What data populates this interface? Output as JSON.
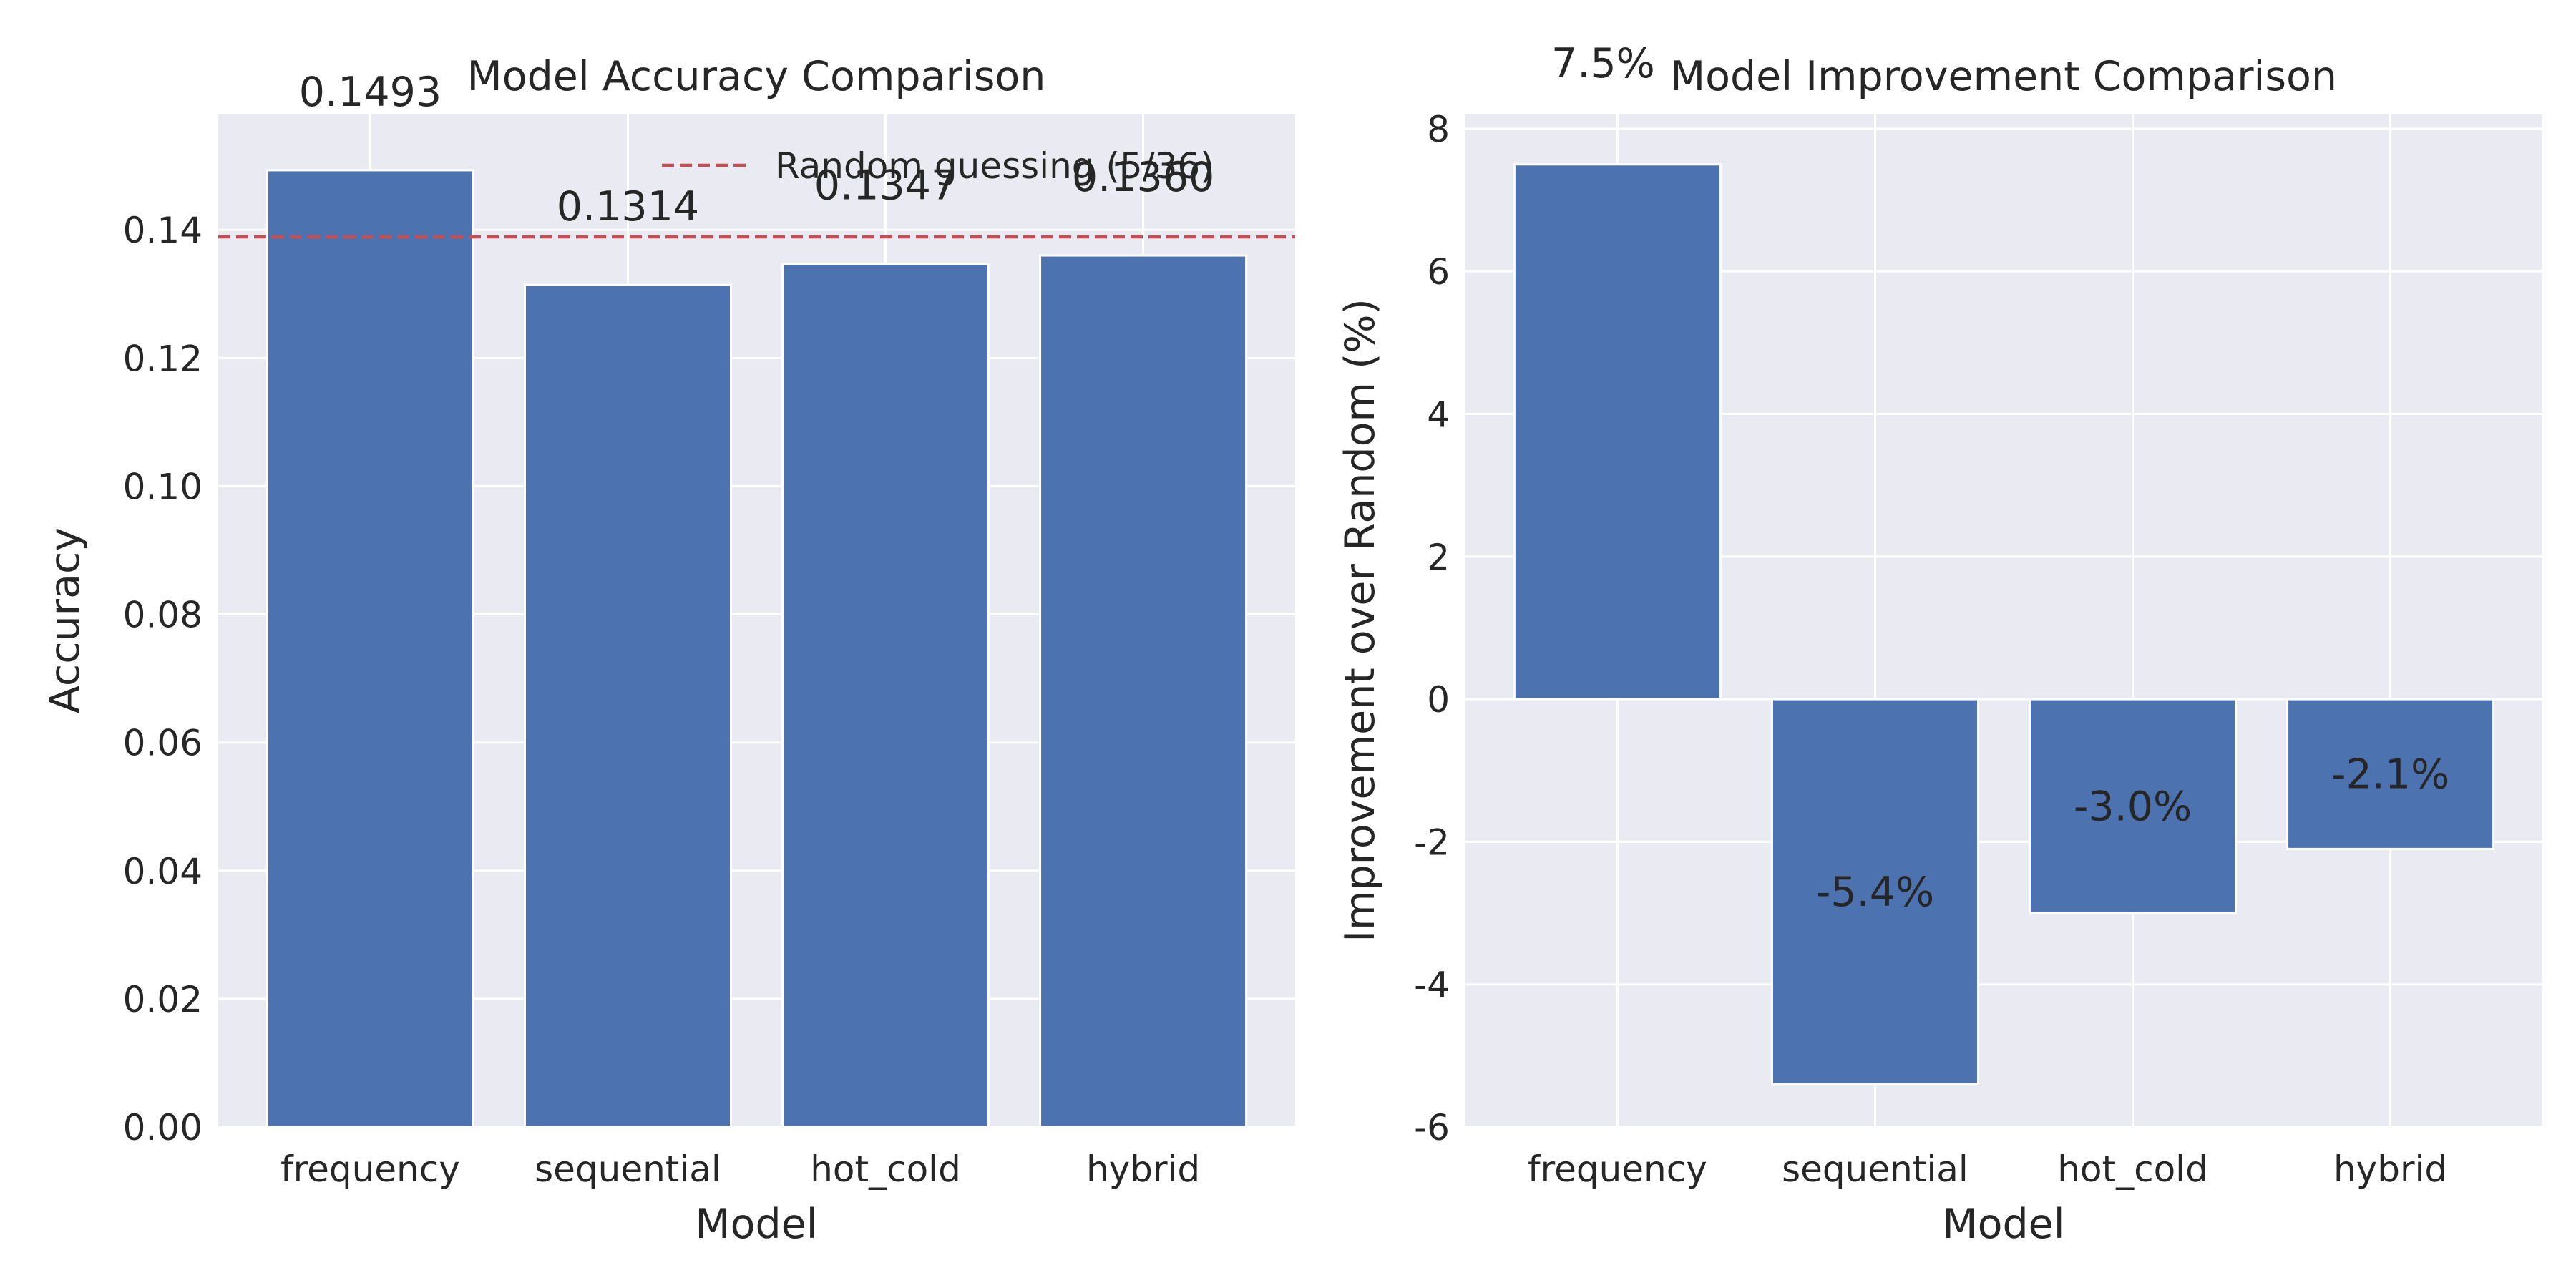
{
  "colors": {
    "bar": "#4c72b0",
    "axes_bg": "#eaeaf2",
    "grid": "#ffffff",
    "reference_line": "#c44e52",
    "text": "#262626"
  },
  "chart_data": [
    {
      "type": "bar",
      "title": "Model Accuracy Comparison",
      "xlabel": "Model",
      "ylabel": "Accuracy",
      "categories": [
        "frequency",
        "sequential",
        "hot_cold",
        "hybrid"
      ],
      "values": [
        0.1493,
        0.1314,
        0.1347,
        0.136
      ],
      "data_labels": [
        "0.1493",
        "0.1314",
        "0.1347",
        "0.1360"
      ],
      "ylim": [
        0,
        0.158
      ],
      "yticks": [
        0.0,
        0.02,
        0.04,
        0.06,
        0.08,
        0.1,
        0.12,
        0.14
      ],
      "ytick_labels": [
        "0.00",
        "0.02",
        "0.04",
        "0.06",
        "0.08",
        "0.10",
        "0.12",
        "0.14"
      ],
      "grid": true,
      "reference_line": {
        "value": 0.1389,
        "label": "Random guessing (5/36)",
        "style": "dashed"
      },
      "legend": "upper-right"
    },
    {
      "type": "bar",
      "title": "Model Improvement Comparison",
      "xlabel": "Model",
      "ylabel": "Improvement over Random (%)",
      "categories": [
        "frequency",
        "sequential",
        "hot_cold",
        "hybrid"
      ],
      "values": [
        7.5,
        -5.4,
        -3.0,
        -2.1
      ],
      "data_labels": [
        "7.5%",
        "-5.4%",
        "-3.0%",
        "-2.1%"
      ],
      "ylim": [
        -6,
        8.2
      ],
      "yticks": [
        -6,
        -4,
        -2,
        0,
        2,
        4,
        6,
        8
      ],
      "ytick_labels": [
        "-6",
        "-4",
        "-2",
        "0",
        "2",
        "4",
        "6",
        "8"
      ],
      "grid": true
    }
  ]
}
